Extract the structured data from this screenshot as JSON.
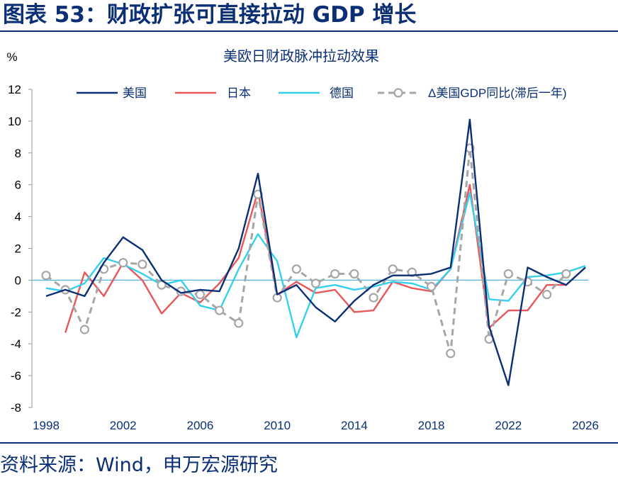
{
  "header": {
    "title": "图表 53：财政扩张可直接拉动 GDP 增长"
  },
  "footer": {
    "source": "资料来源：Wind，申万宏源研究"
  },
  "colors": {
    "us": "#0b2f74",
    "japan": "#e8585a",
    "germany": "#35d0ee",
    "us_gdp": "#a6a6a6",
    "accent": "#0b2f74",
    "zero_line": "#5ab2d6"
  },
  "chart_data": {
    "type": "line",
    "title": "美欧日财政脉冲拉动效果",
    "ylabel": "%",
    "xlabel": "",
    "ylim": [
      -8,
      12
    ],
    "y_ticks": [
      -8,
      -6,
      -4,
      -2,
      0,
      2,
      4,
      6,
      8,
      10,
      12
    ],
    "x_ticks": [
      1998,
      2002,
      2006,
      2010,
      2014,
      2018,
      2022,
      2026
    ],
    "xlim": [
      1998,
      2026
    ],
    "legend_position": "top",
    "grid": false,
    "series": [
      {
        "name": "美国",
        "style": "solid",
        "x": [
          1998,
          1999,
          2000,
          2001,
          2002,
          2003,
          2004,
          2005,
          2006,
          2007,
          2008,
          2009,
          2010,
          2011,
          2012,
          2013,
          2014,
          2015,
          2016,
          2017,
          2018,
          2019,
          2020,
          2021,
          2022,
          2023,
          2024,
          2025,
          2026
        ],
        "values": [
          -1.0,
          -0.6,
          -1.0,
          1.1,
          2.7,
          1.9,
          0.0,
          -0.8,
          -0.6,
          -0.7,
          2.0,
          6.7,
          -0.9,
          -0.3,
          -1.7,
          -2.6,
          -1.3,
          -0.3,
          0.3,
          0.3,
          0.4,
          0.8,
          10.1,
          -2.9,
          -6.6,
          0.8,
          0.2,
          -0.3,
          0.8
        ]
      },
      {
        "name": "日本",
        "style": "solid",
        "x": [
          1999,
          2000,
          2001,
          2002,
          2003,
          2004,
          2005,
          2006,
          2007,
          2008,
          2009,
          2010,
          2011,
          2012,
          2013,
          2014,
          2015,
          2016,
          2017,
          2018,
          2019,
          2020,
          2021,
          2022,
          2023,
          2024,
          2025,
          2026
        ],
        "values": [
          -3.3,
          0.5,
          -1.0,
          1.1,
          0.0,
          -2.1,
          -0.8,
          -1.4,
          -0.2,
          1.4,
          5.6,
          -0.9,
          -0.1,
          -0.8,
          -0.6,
          -2.0,
          -1.9,
          -0.1,
          -0.5,
          -0.7,
          0.7,
          6.0,
          -3.0,
          -1.9,
          -1.9,
          -0.3,
          -0.3,
          0.8
        ]
      },
      {
        "name": "德国",
        "style": "solid",
        "x": [
          1998,
          1999,
          2000,
          2001,
          2002,
          2003,
          2004,
          2005,
          2006,
          2007,
          2008,
          2009,
          2010,
          2011,
          2012,
          2013,
          2014,
          2015,
          2016,
          2017,
          2018,
          2019,
          2020,
          2021,
          2022,
          2023,
          2024,
          2025,
          2026
        ],
        "values": [
          -0.5,
          -0.7,
          -0.2,
          1.4,
          1.0,
          0.4,
          -0.3,
          0.0,
          -1.6,
          -1.9,
          0.7,
          2.9,
          1.2,
          -3.6,
          -0.5,
          -0.3,
          -0.6,
          -0.4,
          -0.1,
          -0.2,
          -0.6,
          0.7,
          5.5,
          -1.2,
          -1.3,
          0.2,
          0.3,
          0.5,
          0.9
        ]
      },
      {
        "name": "Δ美国GDP同比(滞后一年)",
        "style": "dashed-markers",
        "x": [
          1998,
          1999,
          2000,
          2001,
          2002,
          2003,
          2004,
          2005,
          2006,
          2007,
          2008,
          2009,
          2010,
          2011,
          2012,
          2013,
          2014,
          2015,
          2016,
          2017,
          2018,
          2019,
          2020,
          2021,
          2022,
          2023,
          2024,
          2025
        ],
        "values": [
          0.3,
          -0.6,
          -3.1,
          0.7,
          1.1,
          1.0,
          -0.3,
          -0.7,
          -0.9,
          -1.9,
          -2.7,
          5.4,
          -1.1,
          0.7,
          -0.2,
          0.4,
          0.4,
          -1.1,
          0.7,
          0.5,
          -0.4,
          -4.6,
          8.3,
          -3.7,
          0.4,
          -0.1,
          -0.9,
          0.4
        ]
      }
    ]
  }
}
